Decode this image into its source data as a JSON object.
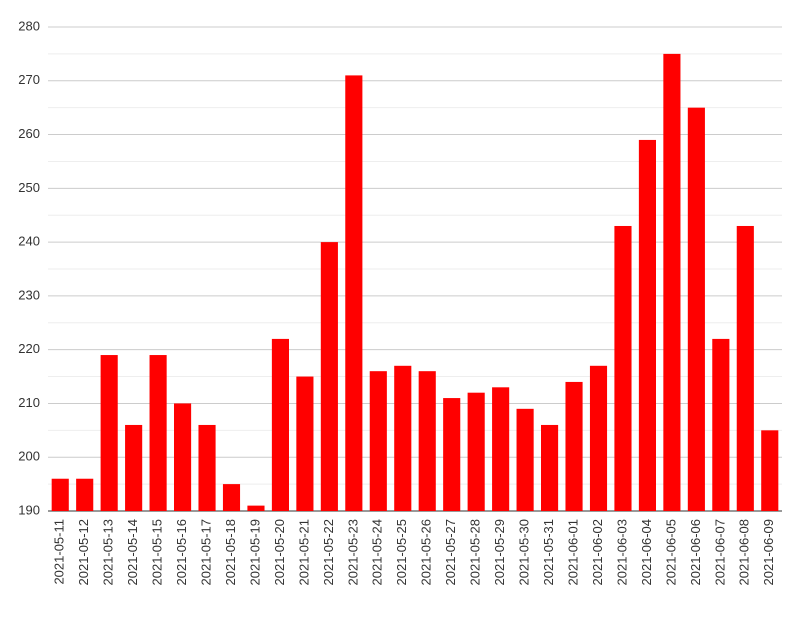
{
  "chart_data": {
    "type": "bar",
    "categories": [
      "2021-05-11",
      "2021-05-12",
      "2021-05-13",
      "2021-05-14",
      "2021-05-15",
      "2021-05-16",
      "2021-05-17",
      "2021-05-18",
      "2021-05-19",
      "2021-05-20",
      "2021-05-21",
      "2021-05-22",
      "2021-05-23",
      "2021-05-24",
      "2021-05-25",
      "2021-05-26",
      "2021-05-27",
      "2021-05-28",
      "2021-05-29",
      "2021-05-30",
      "2021-05-31",
      "2021-06-01",
      "2021-06-02",
      "2021-06-03",
      "2021-06-04",
      "2021-06-05",
      "2021-06-06",
      "2021-06-07",
      "2021-06-08",
      "2021-06-09"
    ],
    "values": [
      196,
      196,
      219,
      206,
      219,
      210,
      206,
      195,
      191,
      222,
      215,
      240,
      271,
      216,
      217,
      216,
      211,
      212,
      213,
      209,
      206,
      214,
      217,
      243,
      259,
      275,
      265,
      222,
      243,
      205
    ],
    "color": "#ff0000",
    "ylim": [
      190,
      280
    ],
    "yticks": [
      190,
      200,
      210,
      220,
      230,
      240,
      250,
      260,
      270,
      280
    ],
    "grid": true,
    "minor_grid": true
  }
}
